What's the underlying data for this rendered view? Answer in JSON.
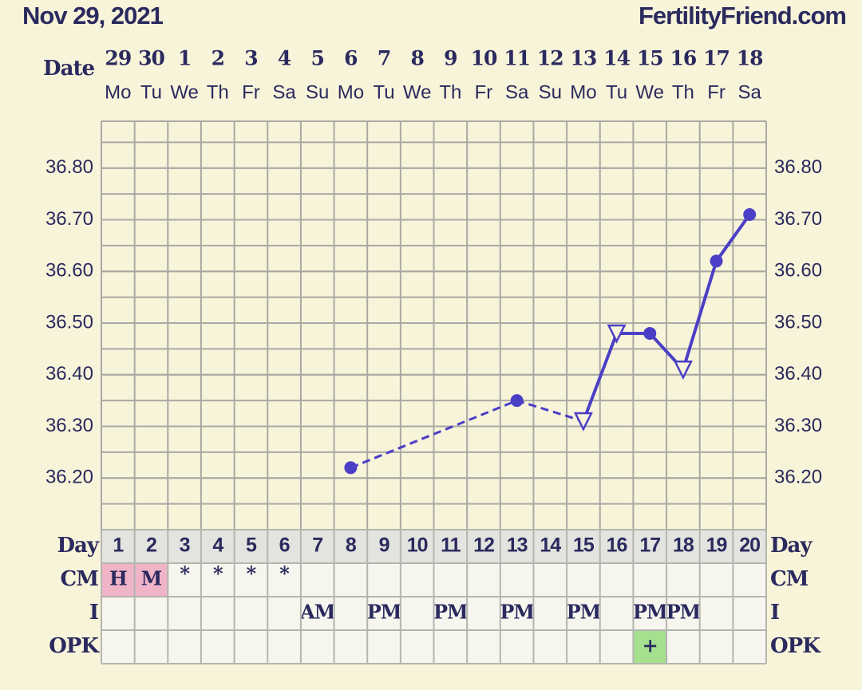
{
  "chart_data": {
    "type": "line",
    "title": "Nov 29, 2021",
    "site": "FertilityFriend.com",
    "date_label": "Date",
    "dates": [
      29,
      30,
      1,
      2,
      3,
      4,
      5,
      6,
      7,
      8,
      9,
      10,
      11,
      12,
      13,
      14,
      15,
      16,
      17,
      18
    ],
    "weekdays": [
      "Mo",
      "Tu",
      "We",
      "Th",
      "Fr",
      "Sa",
      "Su",
      "Mo",
      "Tu",
      "We",
      "Th",
      "Fr",
      "Sa",
      "Su",
      "Mo",
      "Tu",
      "We",
      "Th",
      "Fr",
      "Sa"
    ],
    "categories": [
      1,
      2,
      3,
      4,
      5,
      6,
      7,
      8,
      9,
      10,
      11,
      12,
      13,
      14,
      15,
      16,
      17,
      18,
      19,
      20
    ],
    "values": [
      null,
      null,
      null,
      null,
      null,
      null,
      null,
      36.22,
      null,
      null,
      null,
      null,
      36.35,
      null,
      36.31,
      36.48,
      36.48,
      36.41,
      36.62,
      36.71
    ],
    "markers": [
      null,
      null,
      null,
      null,
      null,
      null,
      null,
      "circle",
      null,
      null,
      null,
      null,
      "circle",
      null,
      "triangle",
      "triangle",
      "circle",
      "triangle",
      "circle",
      "circle"
    ],
    "dashed_until_day": 15,
    "color": "#4b3fc6",
    "ylim": [
      36.1,
      36.9
    ],
    "yticks": [
      {
        "value": 36.2,
        "label": "36.20"
      },
      {
        "value": 36.3,
        "label": "36.30"
      },
      {
        "value": 36.4,
        "label": "36.40"
      },
      {
        "value": 36.5,
        "label": "36.50"
      },
      {
        "value": 36.6,
        "label": "36.60"
      },
      {
        "value": 36.7,
        "label": "36.70"
      },
      {
        "value": 36.8,
        "label": "36.80"
      }
    ],
    "grid_ticks": [
      36.15,
      36.2,
      36.25,
      36.3,
      36.35,
      36.4,
      36.45,
      36.5,
      36.55,
      36.6,
      36.65,
      36.7,
      36.75,
      36.8,
      36.85
    ],
    "rows": [
      {
        "label": "Day"
      },
      {
        "label": "CM",
        "cells": [
          "H",
          "M",
          "*",
          "*",
          "*",
          "*",
          null,
          null,
          null,
          null,
          null,
          null,
          null,
          null,
          null,
          null,
          null,
          null,
          null,
          null
        ],
        "colors": [
          "#f0b4c8",
          "#f0b4c8",
          null,
          null,
          null,
          null,
          null,
          null,
          null,
          null,
          null,
          null,
          null,
          null,
          null,
          null,
          null,
          null,
          null,
          null
        ]
      },
      {
        "label": "I",
        "cells": [
          null,
          null,
          null,
          null,
          null,
          null,
          "AM",
          null,
          "PM",
          null,
          "PM",
          null,
          "PM",
          null,
          "PM",
          null,
          "PM",
          "PM",
          null,
          null
        ]
      },
      {
        "label": "OPK",
        "cells": [
          null,
          null,
          null,
          null,
          null,
          null,
          null,
          null,
          null,
          null,
          null,
          null,
          null,
          null,
          null,
          null,
          "+",
          null,
          null,
          null
        ],
        "colors": [
          null,
          null,
          null,
          null,
          null,
          null,
          null,
          null,
          null,
          null,
          null,
          null,
          null,
          null,
          null,
          null,
          "#a4e08e",
          null,
          null,
          null
        ]
      }
    ]
  }
}
